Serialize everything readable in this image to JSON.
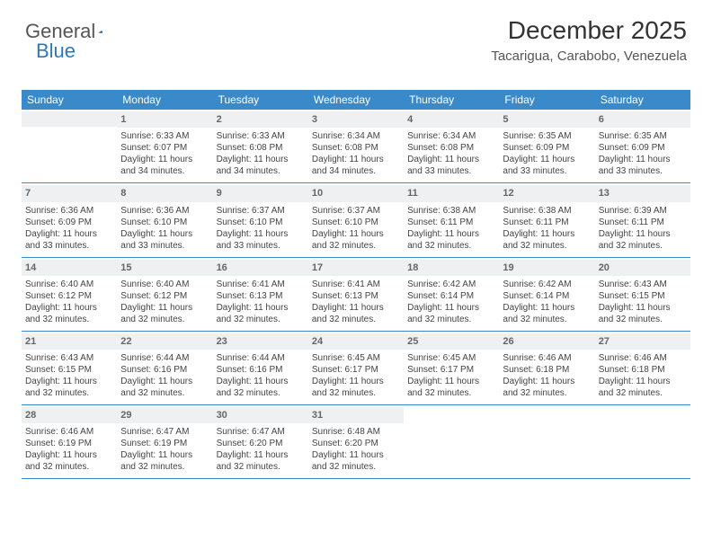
{
  "logo": {
    "text1": "General",
    "text2": "Blue"
  },
  "title": "December 2025",
  "location": "Tacarigua, Carabobo, Venezuela",
  "colors": {
    "header_bar": "#3a89c9",
    "header_text": "#ffffff",
    "daynum_bg": "#eef0f1",
    "daynum_text": "#666666",
    "row_border": "#3a89c9",
    "body_text": "#444444",
    "logo_gray": "#555555",
    "logo_blue": "#2e79b7"
  },
  "weekdays": [
    "Sunday",
    "Monday",
    "Tuesday",
    "Wednesday",
    "Thursday",
    "Friday",
    "Saturday"
  ],
  "weeks": [
    [
      {
        "empty": true
      },
      {
        "num": "1",
        "sunrise": "Sunrise: 6:33 AM",
        "sunset": "Sunset: 6:07 PM",
        "day1": "Daylight: 11 hours",
        "day2": "and 34 minutes."
      },
      {
        "num": "2",
        "sunrise": "Sunrise: 6:33 AM",
        "sunset": "Sunset: 6:08 PM",
        "day1": "Daylight: 11 hours",
        "day2": "and 34 minutes."
      },
      {
        "num": "3",
        "sunrise": "Sunrise: 6:34 AM",
        "sunset": "Sunset: 6:08 PM",
        "day1": "Daylight: 11 hours",
        "day2": "and 34 minutes."
      },
      {
        "num": "4",
        "sunrise": "Sunrise: 6:34 AM",
        "sunset": "Sunset: 6:08 PM",
        "day1": "Daylight: 11 hours",
        "day2": "and 33 minutes."
      },
      {
        "num": "5",
        "sunrise": "Sunrise: 6:35 AM",
        "sunset": "Sunset: 6:09 PM",
        "day1": "Daylight: 11 hours",
        "day2": "and 33 minutes."
      },
      {
        "num": "6",
        "sunrise": "Sunrise: 6:35 AM",
        "sunset": "Sunset: 6:09 PM",
        "day1": "Daylight: 11 hours",
        "day2": "and 33 minutes."
      }
    ],
    [
      {
        "num": "7",
        "sunrise": "Sunrise: 6:36 AM",
        "sunset": "Sunset: 6:09 PM",
        "day1": "Daylight: 11 hours",
        "day2": "and 33 minutes."
      },
      {
        "num": "8",
        "sunrise": "Sunrise: 6:36 AM",
        "sunset": "Sunset: 6:10 PM",
        "day1": "Daylight: 11 hours",
        "day2": "and 33 minutes."
      },
      {
        "num": "9",
        "sunrise": "Sunrise: 6:37 AM",
        "sunset": "Sunset: 6:10 PM",
        "day1": "Daylight: 11 hours",
        "day2": "and 33 minutes."
      },
      {
        "num": "10",
        "sunrise": "Sunrise: 6:37 AM",
        "sunset": "Sunset: 6:10 PM",
        "day1": "Daylight: 11 hours",
        "day2": "and 32 minutes."
      },
      {
        "num": "11",
        "sunrise": "Sunrise: 6:38 AM",
        "sunset": "Sunset: 6:11 PM",
        "day1": "Daylight: 11 hours",
        "day2": "and 32 minutes."
      },
      {
        "num": "12",
        "sunrise": "Sunrise: 6:38 AM",
        "sunset": "Sunset: 6:11 PM",
        "day1": "Daylight: 11 hours",
        "day2": "and 32 minutes."
      },
      {
        "num": "13",
        "sunrise": "Sunrise: 6:39 AM",
        "sunset": "Sunset: 6:11 PM",
        "day1": "Daylight: 11 hours",
        "day2": "and 32 minutes."
      }
    ],
    [
      {
        "num": "14",
        "sunrise": "Sunrise: 6:40 AM",
        "sunset": "Sunset: 6:12 PM",
        "day1": "Daylight: 11 hours",
        "day2": "and 32 minutes."
      },
      {
        "num": "15",
        "sunrise": "Sunrise: 6:40 AM",
        "sunset": "Sunset: 6:12 PM",
        "day1": "Daylight: 11 hours",
        "day2": "and 32 minutes."
      },
      {
        "num": "16",
        "sunrise": "Sunrise: 6:41 AM",
        "sunset": "Sunset: 6:13 PM",
        "day1": "Daylight: 11 hours",
        "day2": "and 32 minutes."
      },
      {
        "num": "17",
        "sunrise": "Sunrise: 6:41 AM",
        "sunset": "Sunset: 6:13 PM",
        "day1": "Daylight: 11 hours",
        "day2": "and 32 minutes."
      },
      {
        "num": "18",
        "sunrise": "Sunrise: 6:42 AM",
        "sunset": "Sunset: 6:14 PM",
        "day1": "Daylight: 11 hours",
        "day2": "and 32 minutes."
      },
      {
        "num": "19",
        "sunrise": "Sunrise: 6:42 AM",
        "sunset": "Sunset: 6:14 PM",
        "day1": "Daylight: 11 hours",
        "day2": "and 32 minutes."
      },
      {
        "num": "20",
        "sunrise": "Sunrise: 6:43 AM",
        "sunset": "Sunset: 6:15 PM",
        "day1": "Daylight: 11 hours",
        "day2": "and 32 minutes."
      }
    ],
    [
      {
        "num": "21",
        "sunrise": "Sunrise: 6:43 AM",
        "sunset": "Sunset: 6:15 PM",
        "day1": "Daylight: 11 hours",
        "day2": "and 32 minutes."
      },
      {
        "num": "22",
        "sunrise": "Sunrise: 6:44 AM",
        "sunset": "Sunset: 6:16 PM",
        "day1": "Daylight: 11 hours",
        "day2": "and 32 minutes."
      },
      {
        "num": "23",
        "sunrise": "Sunrise: 6:44 AM",
        "sunset": "Sunset: 6:16 PM",
        "day1": "Daylight: 11 hours",
        "day2": "and 32 minutes."
      },
      {
        "num": "24",
        "sunrise": "Sunrise: 6:45 AM",
        "sunset": "Sunset: 6:17 PM",
        "day1": "Daylight: 11 hours",
        "day2": "and 32 minutes."
      },
      {
        "num": "25",
        "sunrise": "Sunrise: 6:45 AM",
        "sunset": "Sunset: 6:17 PM",
        "day1": "Daylight: 11 hours",
        "day2": "and 32 minutes."
      },
      {
        "num": "26",
        "sunrise": "Sunrise: 6:46 AM",
        "sunset": "Sunset: 6:18 PM",
        "day1": "Daylight: 11 hours",
        "day2": "and 32 minutes."
      },
      {
        "num": "27",
        "sunrise": "Sunrise: 6:46 AM",
        "sunset": "Sunset: 6:18 PM",
        "day1": "Daylight: 11 hours",
        "day2": "and 32 minutes."
      }
    ],
    [
      {
        "num": "28",
        "sunrise": "Sunrise: 6:46 AM",
        "sunset": "Sunset: 6:19 PM",
        "day1": "Daylight: 11 hours",
        "day2": "and 32 minutes."
      },
      {
        "num": "29",
        "sunrise": "Sunrise: 6:47 AM",
        "sunset": "Sunset: 6:19 PM",
        "day1": "Daylight: 11 hours",
        "day2": "and 32 minutes."
      },
      {
        "num": "30",
        "sunrise": "Sunrise: 6:47 AM",
        "sunset": "Sunset: 6:20 PM",
        "day1": "Daylight: 11 hours",
        "day2": "and 32 minutes."
      },
      {
        "num": "31",
        "sunrise": "Sunrise: 6:48 AM",
        "sunset": "Sunset: 6:20 PM",
        "day1": "Daylight: 11 hours",
        "day2": "and 32 minutes."
      },
      {
        "empty": true
      },
      {
        "empty": true
      },
      {
        "empty": true
      }
    ]
  ]
}
